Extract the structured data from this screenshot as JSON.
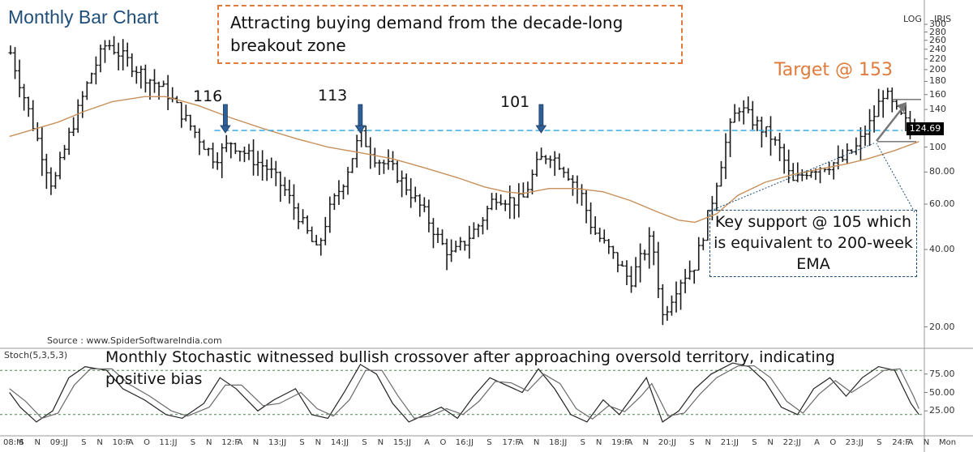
{
  "title": "Monthly Bar Chart",
  "annotations": {
    "top_callout": "Attracting buying demand from the decade-long breakout zone",
    "target": "Target @ 153",
    "support_callout": "Key support @ 105 which is equivalent to 200-week EMA",
    "peaks": [
      "116",
      "113",
      "101"
    ],
    "stoch_note": "Monthly Stochastic witnessed bullish crossover after approaching oversold territory, indicating positive bias",
    "source": "Source : www.SpiderSoftwareIndia.com",
    "stoch_label": "Stoch(5,3,5,3)",
    "log_label": "LOG",
    "iris_label": "IRIS",
    "last_price": "124.69"
  },
  "colors": {
    "bars": "#1a1a1a",
    "ema": "#c8905a",
    "breakout_line": "#29a3e0",
    "target_orange": "#e07b3c",
    "support_blue": "#1f4e79",
    "arrow_fill": "#2e5f96"
  },
  "chart_data": [
    {
      "type": "bar",
      "subtype": "ohlc-monthly",
      "scale": "log",
      "title": "Monthly Bar Chart",
      "y_ticks": [
        "300",
        "280",
        "260",
        "240",
        "220",
        "200",
        "180",
        "160",
        "140",
        "100",
        "80.00",
        "60.00",
        "40.00",
        "20.00"
      ],
      "x_ticks": [
        "08:M",
        "S",
        "N",
        "09:J",
        "J",
        "S",
        "N",
        "10:F",
        "A",
        "O",
        "11:J",
        "J",
        "S",
        "N",
        "12:F",
        "A",
        "N",
        "13:J",
        "J",
        "S",
        "N",
        "14:J",
        "J",
        "S",
        "N",
        "15:J",
        "J",
        "A",
        "O",
        "16:J",
        "J",
        "S",
        "17:F",
        "A",
        "N",
        "18:J",
        "J",
        "S",
        "N",
        "19:F",
        "A",
        "N",
        "20:J",
        "J",
        "S",
        "N",
        "21:J",
        "J",
        "S",
        "N",
        "22:J",
        "J",
        "A",
        "O",
        "23:J",
        "J",
        "S",
        "24:F",
        "A",
        "N",
        "Mon"
      ],
      "series": [
        {
          "kind": "ohlc",
          "close_path": [
            [
              2008.1,
              240
            ],
            [
              2008.4,
              150
            ],
            [
              2008.9,
              70
            ],
            [
              2009.2,
              110
            ],
            [
              2009.6,
              190
            ],
            [
              2009.9,
              255
            ],
            [
              2010.3,
              215
            ],
            [
              2010.6,
              190
            ],
            [
              2011.0,
              165
            ],
            [
              2011.4,
              125
            ],
            [
              2011.9,
              90
            ],
            [
              2012.2,
              105
            ],
            [
              2012.6,
              90
            ],
            [
              2012.9,
              82
            ],
            [
              2013.2,
              68
            ],
            [
              2013.5,
              52
            ],
            [
              2013.8,
              39
            ],
            [
              2014.0,
              55
            ],
            [
              2014.3,
              75
            ],
            [
              2014.6,
              112
            ],
            [
              2014.9,
              90
            ],
            [
              2015.2,
              82
            ],
            [
              2015.5,
              68
            ],
            [
              2015.8,
              55
            ],
            [
              2016.1,
              42
            ],
            [
              2016.3,
              38
            ],
            [
              2016.5,
              42
            ],
            [
              2016.8,
              50
            ],
            [
              2017.1,
              65
            ],
            [
              2017.4,
              62
            ],
            [
              2017.6,
              62
            ],
            [
              2017.9,
              88
            ],
            [
              2018.1,
              95
            ],
            [
              2018.4,
              82
            ],
            [
              2018.7,
              65
            ],
            [
              2018.9,
              48
            ],
            [
              2019.2,
              40
            ],
            [
              2019.4,
              35
            ],
            [
              2019.6,
              30
            ],
            [
              2019.8,
              37
            ],
            [
              2020.0,
              45
            ],
            [
              2020.2,
              22
            ],
            [
              2020.5,
              30
            ],
            [
              2020.8,
              35
            ],
            [
              2021.1,
              60
            ],
            [
              2021.4,
              110
            ],
            [
              2021.6,
              145
            ],
            [
              2021.9,
              125
            ],
            [
              2022.2,
              110
            ],
            [
              2022.4,
              95
            ],
            [
              2022.6,
              72
            ],
            [
              2022.9,
              82
            ],
            [
              2023.2,
              85
            ],
            [
              2023.5,
              88
            ],
            [
              2023.8,
              100
            ],
            [
              2024.1,
              130
            ],
            [
              2024.3,
              165
            ],
            [
              2024.5,
              140
            ],
            [
              2024.8,
              118
            ],
            [
              2024.95,
              124.69
            ]
          ],
          "name": ""
        },
        {
          "kind": "ema",
          "name": "",
          "points": [
            [
              2008.1,
              110
            ],
            [
              2008.6,
              118
            ],
            [
              2009.0,
              125
            ],
            [
              2009.5,
              138
            ],
            [
              2010.0,
              150
            ],
            [
              2010.6,
              157
            ],
            [
              2011.0,
              157
            ],
            [
              2011.6,
              145
            ],
            [
              2012.2,
              130
            ],
            [
              2012.8,
              118
            ],
            [
              2013.4,
              108
            ],
            [
              2014.0,
              100
            ],
            [
              2014.6,
              95
            ],
            [
              2015.2,
              90
            ],
            [
              2015.8,
              83
            ],
            [
              2016.4,
              76
            ],
            [
              2016.9,
              70
            ],
            [
              2017.3,
              67
            ],
            [
              2017.6,
              66
            ],
            [
              2018.1,
              69
            ],
            [
              2018.6,
              69
            ],
            [
              2019.1,
              67
            ],
            [
              2019.6,
              62
            ],
            [
              2020.1,
              56
            ],
            [
              2020.5,
              52
            ],
            [
              2020.8,
              51
            ],
            [
              2021.2,
              55
            ],
            [
              2021.6,
              65
            ],
            [
              2022.1,
              73
            ],
            [
              2022.6,
              78
            ],
            [
              2023.1,
              82
            ],
            [
              2023.6,
              86
            ],
            [
              2024.0,
              90
            ],
            [
              2024.5,
              97
            ],
            [
              2024.95,
              105
            ]
          ]
        }
      ],
      "breakout_level": 116,
      "support_level": 105,
      "target_level": 153,
      "peaks": [
        {
          "label": "116",
          "x": 2012.1,
          "value": 116
        },
        {
          "label": "113",
          "x": 2014.6,
          "value": 113
        },
        {
          "label": "101",
          "x": 2017.95,
          "value": 101
        }
      ]
    },
    {
      "type": "line",
      "title": "Stoch(5,3,5,3)",
      "y_ticks": [
        "75.00",
        "50.00",
        "25.00"
      ],
      "ylim": [
        0,
        100
      ],
      "reference_lines": [
        80,
        20
      ],
      "series": [
        {
          "name": "",
          "points": [
            [
              2008.1,
              50
            ],
            [
              2008.3,
              30
            ],
            [
              2008.6,
              10
            ],
            [
              2008.9,
              25
            ],
            [
              2009.2,
              70
            ],
            [
              2009.5,
              85
            ],
            [
              2009.9,
              80
            ],
            [
              2010.2,
              55
            ],
            [
              2010.6,
              40
            ],
            [
              2011.0,
              20
            ],
            [
              2011.3,
              15
            ],
            [
              2011.7,
              35
            ],
            [
              2012.0,
              70
            ],
            [
              2012.3,
              55
            ],
            [
              2012.7,
              25
            ],
            [
              2013.0,
              40
            ],
            [
              2013.4,
              55
            ],
            [
              2013.7,
              20
            ],
            [
              2014.0,
              15
            ],
            [
              2014.3,
              50
            ],
            [
              2014.6,
              88
            ],
            [
              2014.9,
              75
            ],
            [
              2015.2,
              35
            ],
            [
              2015.5,
              10
            ],
            [
              2015.8,
              20
            ],
            [
              2016.1,
              30
            ],
            [
              2016.4,
              15
            ],
            [
              2016.7,
              45
            ],
            [
              2017.0,
              70
            ],
            [
              2017.3,
              60
            ],
            [
              2017.6,
              50
            ],
            [
              2017.9,
              82
            ],
            [
              2018.2,
              55
            ],
            [
              2018.5,
              20
            ],
            [
              2018.8,
              10
            ],
            [
              2019.1,
              40
            ],
            [
              2019.4,
              20
            ],
            [
              2019.7,
              50
            ],
            [
              2019.9,
              70
            ],
            [
              2020.2,
              10
            ],
            [
              2020.5,
              25
            ],
            [
              2020.8,
              55
            ],
            [
              2021.1,
              75
            ],
            [
              2021.5,
              90
            ],
            [
              2021.8,
              85
            ],
            [
              2022.1,
              65
            ],
            [
              2022.4,
              30
            ],
            [
              2022.7,
              20
            ],
            [
              2023.0,
              55
            ],
            [
              2023.3,
              70
            ],
            [
              2023.6,
              45
            ],
            [
              2023.9,
              70
            ],
            [
              2024.2,
              85
            ],
            [
              2024.5,
              80
            ],
            [
              2024.8,
              35
            ],
            [
              2024.95,
              20
            ]
          ]
        },
        {
          "name": "",
          "points": [
            [
              2008.1,
              55
            ],
            [
              2008.4,
              38
            ],
            [
              2008.7,
              15
            ],
            [
              2009.0,
              22
            ],
            [
              2009.3,
              60
            ],
            [
              2009.6,
              82
            ],
            [
              2010.0,
              82
            ],
            [
              2010.3,
              62
            ],
            [
              2010.7,
              45
            ],
            [
              2011.1,
              25
            ],
            [
              2011.4,
              18
            ],
            [
              2011.8,
              30
            ],
            [
              2012.1,
              60
            ],
            [
              2012.4,
              60
            ],
            [
              2012.8,
              32
            ],
            [
              2013.1,
              35
            ],
            [
              2013.5,
              50
            ],
            [
              2013.8,
              28
            ],
            [
              2014.1,
              18
            ],
            [
              2014.4,
              40
            ],
            [
              2014.7,
              80
            ],
            [
              2015.0,
              80
            ],
            [
              2015.3,
              45
            ],
            [
              2015.6,
              15
            ],
            [
              2015.9,
              18
            ],
            [
              2016.2,
              28
            ],
            [
              2016.5,
              20
            ],
            [
              2016.8,
              38
            ],
            [
              2017.1,
              65
            ],
            [
              2017.4,
              63
            ],
            [
              2017.7,
              52
            ],
            [
              2018.0,
              75
            ],
            [
              2018.3,
              62
            ],
            [
              2018.6,
              28
            ],
            [
              2018.9,
              14
            ],
            [
              2019.2,
              32
            ],
            [
              2019.5,
              24
            ],
            [
              2019.8,
              45
            ],
            [
              2020.0,
              62
            ],
            [
              2020.3,
              18
            ],
            [
              2020.6,
              22
            ],
            [
              2020.9,
              48
            ],
            [
              2021.2,
              70
            ],
            [
              2021.6,
              86
            ],
            [
              2021.9,
              86
            ],
            [
              2022.2,
              70
            ],
            [
              2022.5,
              38
            ],
            [
              2022.8,
              22
            ],
            [
              2023.1,
              48
            ],
            [
              2023.4,
              66
            ],
            [
              2023.7,
              50
            ],
            [
              2024.0,
              64
            ],
            [
              2024.3,
              80
            ],
            [
              2024.6,
              82
            ],
            [
              2024.85,
              45
            ],
            [
              2024.95,
              28
            ]
          ]
        }
      ]
    }
  ]
}
